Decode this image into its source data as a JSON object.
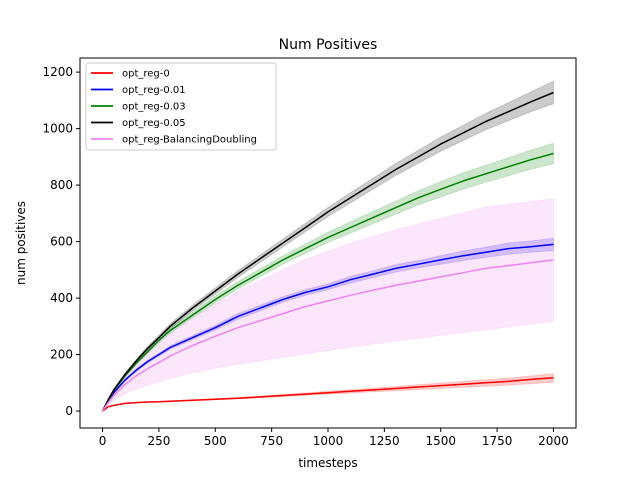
{
  "chart_data": {
    "type": "line",
    "title": "Num Positives",
    "xlabel": "timesteps",
    "ylabel": "num positives",
    "xlim": [
      -100,
      2100
    ],
    "ylim": [
      -60,
      1250
    ],
    "xticks": [
      0,
      250,
      500,
      750,
      1000,
      1250,
      1500,
      1750,
      2000
    ],
    "yticks": [
      0,
      200,
      400,
      600,
      800,
      1000,
      1200
    ],
    "grid": false,
    "legend_position": "top-left",
    "x": [
      0,
      25,
      50,
      100,
      150,
      200,
      250,
      300,
      400,
      500,
      600,
      700,
      800,
      900,
      1000,
      1100,
      1200,
      1300,
      1400,
      1500,
      1600,
      1700,
      1800,
      1900,
      2000
    ],
    "series": [
      {
        "name": "opt_reg-0",
        "color": "#ff0000",
        "values": [
          0,
          15,
          20,
          27,
          30,
          32,
          33,
          35,
          38,
          42,
          45,
          50,
          55,
          60,
          65,
          70,
          75,
          80,
          85,
          90,
          95,
          100,
          105,
          112,
          118
        ],
        "lower": [
          0,
          15,
          19,
          26,
          29,
          31,
          32,
          34,
          37,
          40,
          43,
          47,
          51,
          56,
          60,
          64,
          68,
          72,
          76,
          80,
          84,
          88,
          92,
          97,
          102
        ],
        "upper": [
          0,
          16,
          21,
          28,
          31,
          33,
          34,
          36,
          40,
          44,
          48,
          53,
          59,
          64,
          70,
          75,
          81,
          87,
          93,
          99,
          105,
          111,
          117,
          124,
          132
        ]
      },
      {
        "name": "opt_reg-0.01",
        "color": "#0000ff",
        "values": [
          0,
          35,
          65,
          110,
          145,
          175,
          200,
          225,
          260,
          295,
          335,
          365,
          395,
          420,
          440,
          465,
          485,
          505,
          520,
          535,
          550,
          562,
          575,
          582,
          590
        ],
        "lower": [
          0,
          33,
          62,
          106,
          140,
          170,
          195,
          219,
          253,
          287,
          325,
          355,
          385,
          410,
          430,
          453,
          473,
          492,
          507,
          520,
          533,
          544,
          555,
          562,
          568
        ],
        "upper": [
          0,
          37,
          68,
          114,
          150,
          180,
          205,
          231,
          267,
          303,
          345,
          375,
          405,
          430,
          450,
          477,
          497,
          518,
          533,
          550,
          567,
          580,
          595,
          602,
          612
        ]
      },
      {
        "name": "opt_reg-0.03",
        "color": "#008000",
        "values": [
          0,
          38,
          72,
          125,
          170,
          210,
          250,
          285,
          340,
          395,
          445,
          490,
          535,
          575,
          615,
          650,
          685,
          720,
          755,
          785,
          815,
          840,
          865,
          890,
          912
        ],
        "lower": [
          0,
          36,
          69,
          120,
          164,
          203,
          242,
          276,
          330,
          383,
          432,
          476,
          520,
          559,
          597,
          630,
          663,
          697,
          730,
          758,
          786,
          810,
          833,
          856,
          876
        ],
        "upper": [
          0,
          40,
          75,
          130,
          176,
          217,
          258,
          294,
          350,
          407,
          458,
          504,
          550,
          591,
          633,
          670,
          707,
          743,
          780,
          812,
          844,
          870,
          897,
          924,
          948
        ]
      },
      {
        "name": "opt_reg-0.05",
        "color": "#000000",
        "values": [
          0,
          40,
          75,
          130,
          178,
          222,
          260,
          300,
          365,
          425,
          485,
          540,
          595,
          650,
          705,
          755,
          805,
          855,
          900,
          945,
          985,
          1025,
          1060,
          1095,
          1128
        ],
        "lower": [
          0,
          38,
          72,
          125,
          172,
          215,
          252,
          291,
          355,
          414,
          473,
          527,
          581,
          635,
          689,
          737,
          786,
          834,
          877,
          920,
          958,
          996,
          1028,
          1060,
          1088
        ],
        "upper": [
          0,
          42,
          78,
          135,
          184,
          229,
          268,
          309,
          375,
          436,
          497,
          553,
          609,
          665,
          721,
          773,
          824,
          876,
          923,
          970,
          1012,
          1054,
          1092,
          1130,
          1168
        ]
      },
      {
        "name": "opt_reg-BalancingDoubling",
        "color": "#ee82ee",
        "values": [
          0,
          30,
          55,
          95,
          125,
          150,
          172,
          195,
          232,
          265,
          295,
          320,
          345,
          370,
          390,
          410,
          428,
          445,
          460,
          475,
          490,
          505,
          515,
          525,
          535
        ],
        "lower": [
          0,
          22,
          38,
          62,
          78,
          92,
          104,
          116,
          135,
          152,
          166,
          178,
          190,
          203,
          214,
          226,
          237,
          248,
          258,
          268,
          278,
          288,
          298,
          308,
          318
        ],
        "upper": [
          0,
          38,
          72,
          128,
          172,
          208,
          240,
          274,
          329,
          378,
          424,
          462,
          500,
          537,
          566,
          594,
          619,
          642,
          662,
          682,
          702,
          722,
          732,
          742,
          752
        ]
      }
    ]
  }
}
